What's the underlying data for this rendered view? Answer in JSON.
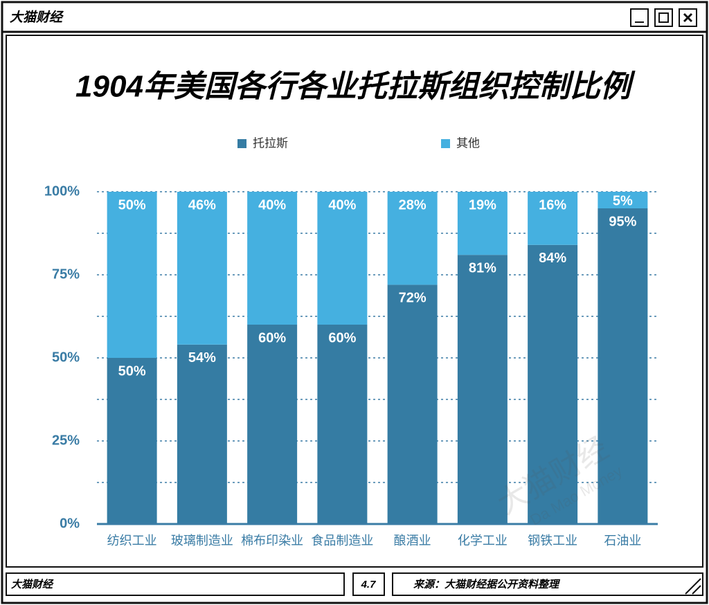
{
  "window": {
    "title": "大猫财经"
  },
  "chart_data": {
    "type": "stacked-bar",
    "title": "1904年美国各行各业托拉斯组织控制比例",
    "categories": [
      "纺织工业",
      "玻璃制造业",
      "棉布印染业",
      "食品制造业",
      "酿酒业",
      "化学工业",
      "钢铁工业",
      "石油业"
    ],
    "series": [
      {
        "name": "托拉斯",
        "color": "#357ca3",
        "values": [
          50,
          54,
          60,
          60,
          72,
          81,
          84,
          95
        ],
        "value_labels": [
          "50%",
          "54%",
          "60%",
          "60%",
          "72%",
          "81%",
          "84%",
          "95%"
        ]
      },
      {
        "name": "其他",
        "color": "#45b0e0",
        "values": [
          50,
          46,
          40,
          40,
          28,
          19,
          16,
          5
        ],
        "value_labels": [
          "50%",
          "46%",
          "40%",
          "40%",
          "28%",
          "19%",
          "16%",
          "5%"
        ]
      }
    ],
    "ylim": [
      0,
      100
    ],
    "yticks": [
      {
        "value": 0,
        "label": "0%"
      },
      {
        "value": 25,
        "label": "25%"
      },
      {
        "value": 50,
        "label": "50%"
      },
      {
        "value": 75,
        "label": "75%"
      },
      {
        "value": 100,
        "label": "100%"
      }
    ],
    "minor_yticks": [
      12.5,
      37.5,
      62.5,
      87.5
    ],
    "grid": true,
    "legend": "top"
  },
  "watermark": [
    "大猫财经",
    "Da Mao Money"
  ],
  "footer": {
    "brand": "大猫财经",
    "page": "4.7",
    "source": "来源：大猫财经据公开资料整理"
  }
}
